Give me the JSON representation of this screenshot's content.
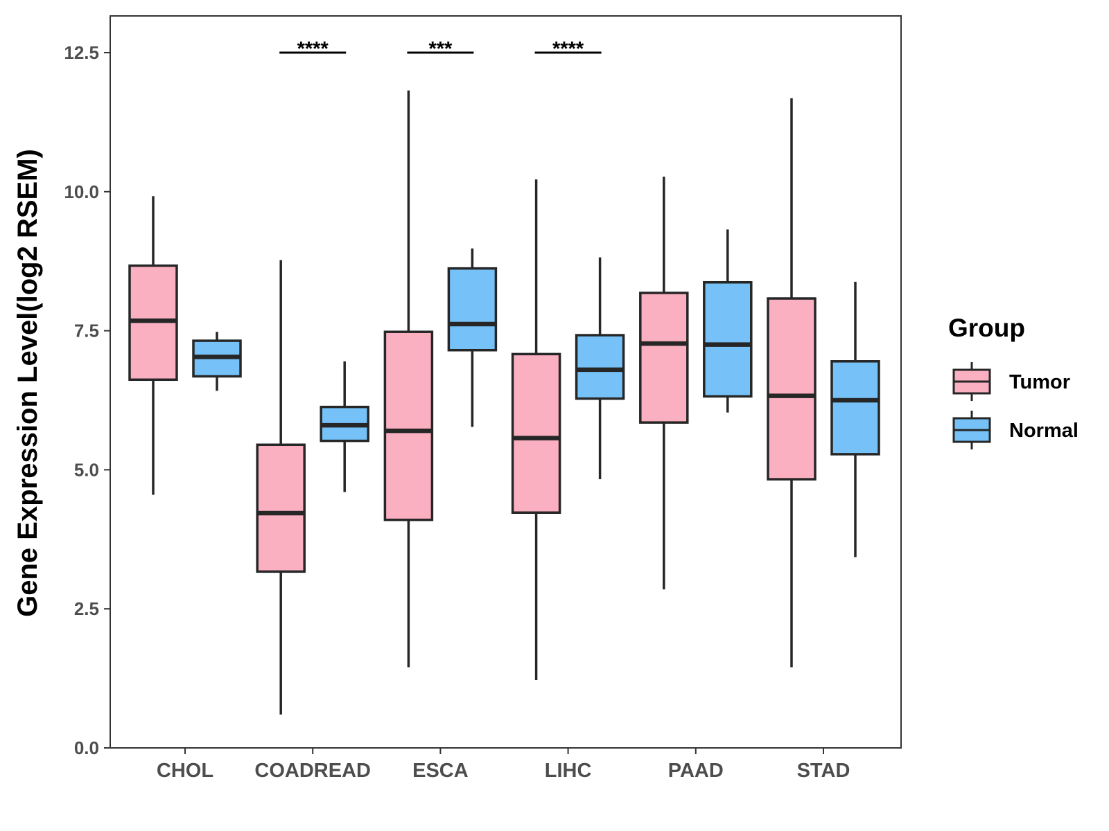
{
  "chart_data": {
    "type": "boxplot",
    "title": "",
    "xlabel": "",
    "ylabel": "Gene Expression Level(log2 RSEM)",
    "ylim": [
      0,
      12.5
    ],
    "yticks": [
      "0.0",
      "2.5",
      "5.0",
      "7.5",
      "10.0",
      "12.5"
    ],
    "categories": [
      "CHOL",
      "COADREAD",
      "ESCA",
      "LIHC",
      "PAAD",
      "STAD"
    ],
    "legend": {
      "title": "Group",
      "position": "right"
    },
    "series": [
      {
        "name": "Tumor",
        "color": "#fbb0c1",
        "boxes": [
          {
            "min": 4.55,
            "q1": 6.62,
            "median": 7.68,
            "q3": 8.67,
            "max": 9.92
          },
          {
            "min": 0.6,
            "q1": 3.17,
            "median": 4.22,
            "q3": 5.45,
            "max": 8.77
          },
          {
            "min": 1.45,
            "q1": 4.1,
            "median": 5.7,
            "q3": 7.48,
            "max": 11.82
          },
          {
            "min": 1.22,
            "q1": 4.23,
            "median": 5.57,
            "q3": 7.08,
            "max": 10.22
          },
          {
            "min": 2.85,
            "q1": 5.85,
            "median": 7.27,
            "q3": 8.18,
            "max": 10.27
          },
          {
            "min": 1.45,
            "q1": 4.83,
            "median": 6.33,
            "q3": 8.08,
            "max": 11.68
          }
        ]
      },
      {
        "name": "Normal",
        "color": "#76c2f8",
        "boxes": [
          {
            "min": 6.42,
            "q1": 6.68,
            "median": 7.03,
            "q3": 7.32,
            "max": 7.48
          },
          {
            "min": 4.6,
            "q1": 5.52,
            "median": 5.8,
            "q3": 6.13,
            "max": 6.95
          },
          {
            "min": 5.77,
            "q1": 7.15,
            "median": 7.62,
            "q3": 8.62,
            "max": 8.98
          },
          {
            "min": 4.83,
            "q1": 6.28,
            "median": 6.8,
            "q3": 7.42,
            "max": 8.82
          },
          {
            "min": 6.03,
            "q1": 6.32,
            "median": 7.25,
            "q3": 8.37,
            "max": 9.32
          },
          {
            "min": 3.43,
            "q1": 5.28,
            "median": 6.25,
            "q3": 6.95,
            "max": 8.38
          }
        ]
      }
    ],
    "significance": [
      {
        "category": "COADREAD",
        "label": "****",
        "y": 12.5
      },
      {
        "category": "ESCA",
        "label": "***",
        "y": 12.5
      },
      {
        "category": "LIHC",
        "label": "****",
        "y": 12.5
      }
    ]
  }
}
